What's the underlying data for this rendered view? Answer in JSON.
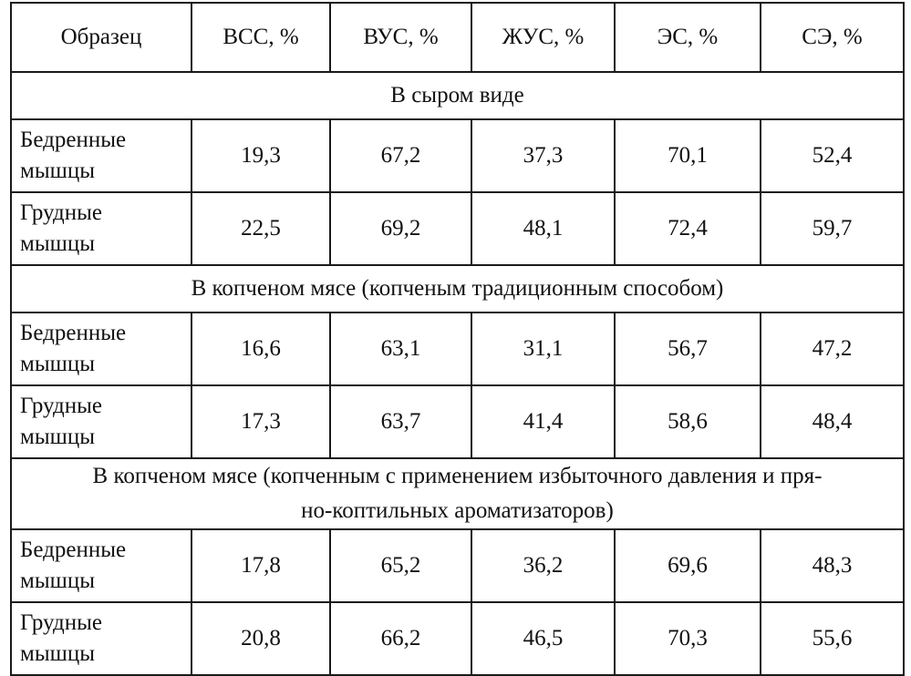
{
  "table": {
    "headers": [
      "Образец",
      "ВСС, %",
      "ВУС, %",
      "ЖУС, %",
      "ЭС, %",
      "СЭ, %"
    ],
    "sections": [
      {
        "title": "В сыром виде",
        "title_lines": [
          "В сыром виде"
        ],
        "rows": [
          {
            "sample_lines": [
              "Бедренные",
              "мышцы"
            ],
            "values": [
              "19,3",
              "67,2",
              "37,3",
              "70,1",
              "52,4"
            ]
          },
          {
            "sample_lines": [
              "Грудные",
              "мышцы"
            ],
            "values": [
              "22,5",
              "69,2",
              "48,1",
              "72,4",
              "59,7"
            ]
          }
        ]
      },
      {
        "title": "В копченом мясе (копченым традиционным способом)",
        "title_lines": [
          "В копченом мясе (копченым традиционным способом)"
        ],
        "rows": [
          {
            "sample_lines": [
              "Бедренные",
              "мышцы"
            ],
            "values": [
              "16,6",
              "63,1",
              "31,1",
              "56,7",
              "47,2"
            ]
          },
          {
            "sample_lines": [
              "Грудные",
              "мышцы"
            ],
            "values": [
              "17,3",
              "63,7",
              "41,4",
              "58,6",
              "48,4"
            ]
          }
        ]
      },
      {
        "title": "В копченом мясе (копченным с применением избыточного давления и пряно-коптильных ароматизаторов)",
        "title_lines": [
          "В копченом мясе (копченным с применением избыточного давления и пря-",
          "но-коптильных  ароматизаторов)"
        ],
        "rows": [
          {
            "sample_lines": [
              "Бедренные",
              "мышцы"
            ],
            "values": [
              "17,8",
              "65,2",
              "36,2",
              "69,6",
              "48,3"
            ]
          },
          {
            "sample_lines": [
              "Грудные",
              "мышцы"
            ],
            "values": [
              "20,8",
              "66,2",
              "46,5",
              "70,3",
              "55,6"
            ]
          }
        ]
      }
    ]
  }
}
